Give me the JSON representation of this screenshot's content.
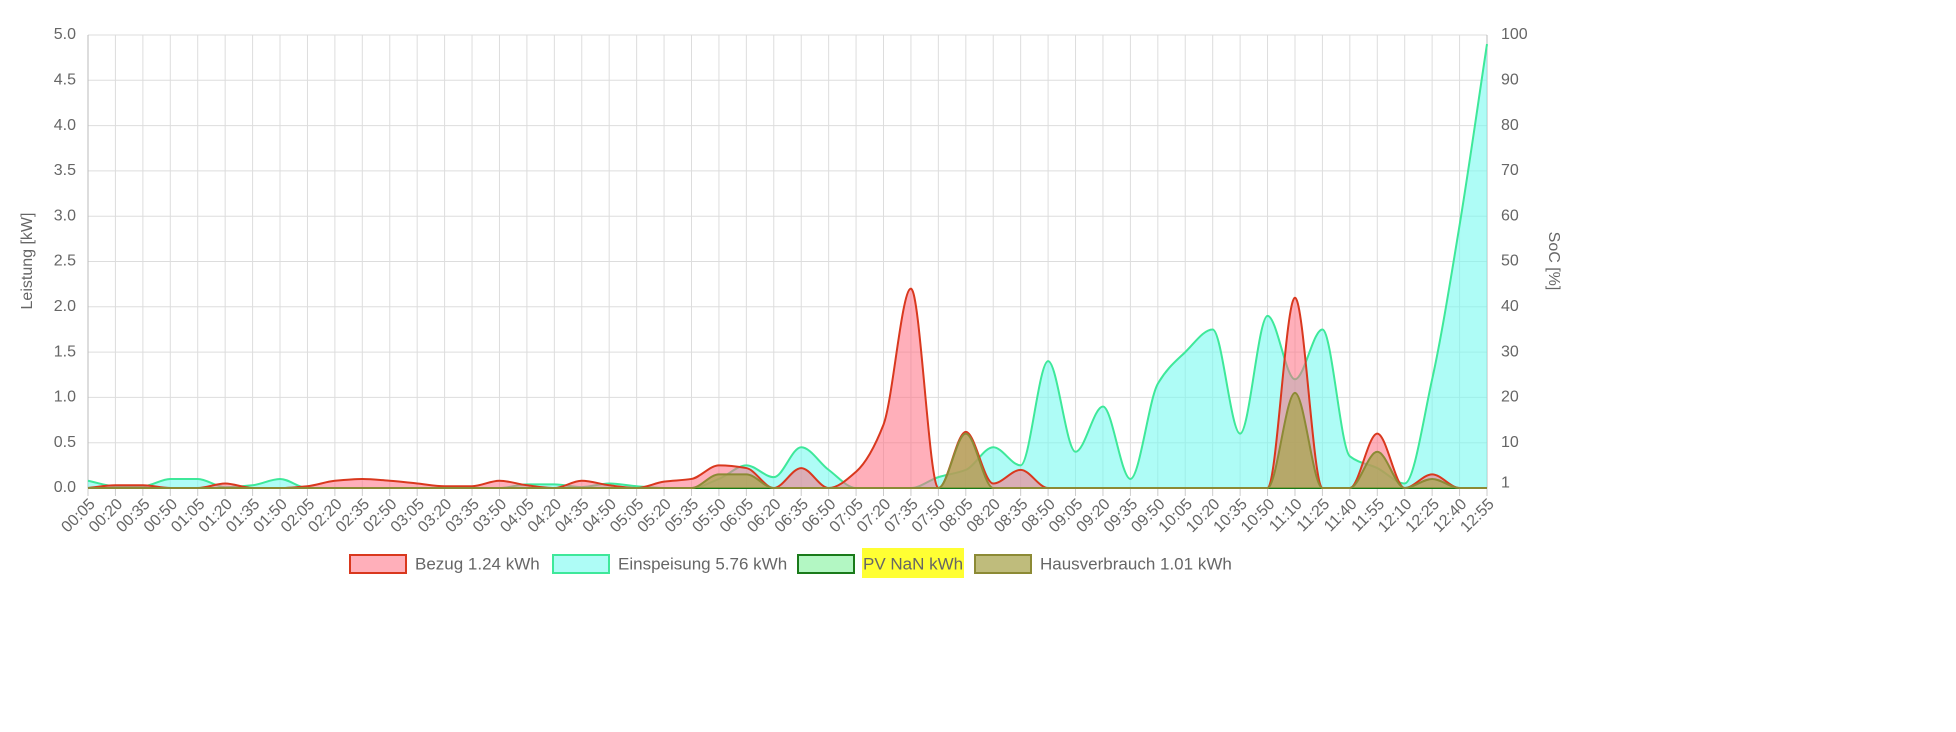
{
  "chart_data": {
    "type": "area",
    "y_label": "Leistung [kW]",
    "y2_label": "SoC [%]",
    "categories": [
      "00:05",
      "00:20",
      "00:35",
      "00:50",
      "01:05",
      "01:20",
      "01:35",
      "01:50",
      "02:05",
      "02:20",
      "02:35",
      "02:50",
      "03:05",
      "03:20",
      "03:35",
      "03:50",
      "04:05",
      "04:20",
      "04:35",
      "04:50",
      "05:05",
      "05:20",
      "05:35",
      "05:50",
      "06:05",
      "06:20",
      "06:35",
      "06:50",
      "07:05",
      "07:20",
      "07:35",
      "07:50",
      "08:05",
      "08:20",
      "08:35",
      "08:50",
      "09:05",
      "09:20",
      "09:35",
      "09:50",
      "10:05",
      "10:20",
      "10:35",
      "10:50",
      "11:10",
      "11:25",
      "11:40",
      "11:55",
      "12:10",
      "12:25",
      "12:40",
      "12:55"
    ],
    "series": [
      {
        "name": "Bezug 1.24 kWh",
        "color": "#d9381e",
        "fill": "rgba(255,110,130,0.55)",
        "values": [
          0,
          0.03,
          0.03,
          0,
          0,
          0.05,
          0,
          0,
          0.02,
          0.08,
          0.1,
          0.08,
          0.05,
          0.02,
          0.02,
          0.08,
          0.03,
          0,
          0.08,
          0.03,
          0,
          0.07,
          0.1,
          0.25,
          0.22,
          0,
          0.22,
          0,
          0.18,
          0.7,
          2.2,
          0,
          0.62,
          0.05,
          0.2,
          0,
          0,
          0,
          0,
          0,
          0,
          0,
          0,
          0,
          2.1,
          0,
          0,
          0.6,
          0,
          0.15,
          0,
          0
        ]
      },
      {
        "name": "Einspeisung 5.76 kWh",
        "color": "#3ee89a",
        "fill": "rgba(120,250,240,0.6)",
        "values": [
          0.08,
          0.02,
          0.02,
          0.1,
          0.1,
          0.01,
          0.03,
          0.1,
          0,
          0,
          0,
          0,
          0,
          0,
          0,
          0,
          0.04,
          0.04,
          0.01,
          0.05,
          0.02,
          0,
          0,
          0.1,
          0.25,
          0.12,
          0.45,
          0.2,
          0,
          0,
          0,
          0.12,
          0.2,
          0.45,
          0.25,
          1.4,
          0.4,
          0.9,
          0.1,
          1.15,
          1.5,
          1.75,
          0.6,
          1.9,
          1.2,
          1.75,
          0.35,
          0.22,
          0.05,
          1.2,
          2.9,
          4.9
        ]
      },
      {
        "name": "PV NaN kWh",
        "color": "#1a7a1a",
        "fill": "rgba(160,245,180,0.8)",
        "values": [
          0,
          0,
          0,
          0,
          0,
          0,
          0,
          0,
          0,
          0,
          0,
          0,
          0,
          0,
          0,
          0,
          0,
          0,
          0,
          0,
          0,
          0,
          0,
          0,
          0,
          0,
          0,
          0,
          0,
          0,
          0,
          0,
          0,
          0,
          0,
          0,
          0,
          0,
          0,
          0,
          0,
          0,
          0,
          0,
          0,
          0,
          0,
          0,
          0,
          0,
          0,
          0
        ]
      },
      {
        "name": "Hausverbrauch 1.01 kWh",
        "color": "#8c8a35",
        "fill": "rgba(170,165,80,0.75)",
        "values": [
          0,
          0,
          0,
          0,
          0,
          0,
          0,
          0,
          0,
          0,
          0,
          0,
          0,
          0,
          0,
          0,
          0,
          0,
          0,
          0,
          0,
          0,
          0,
          0.15,
          0.15,
          0,
          0,
          0,
          0,
          0,
          0,
          0,
          0.6,
          0,
          0,
          0,
          0,
          0,
          0,
          0,
          0,
          0,
          0,
          0,
          1.05,
          0,
          0,
          0.4,
          0,
          0.1,
          0,
          0
        ]
      }
    ],
    "ylim": [
      0,
      5.0
    ],
    "yticks": [
      {
        "value": 0,
        "label": "0.0"
      },
      {
        "value": 0.5,
        "label": "0.5"
      },
      {
        "value": 1,
        "label": "1.0"
      },
      {
        "value": 1.5,
        "label": "1.5"
      },
      {
        "value": 2,
        "label": "2.0"
      },
      {
        "value": 2.5,
        "label": "2.5"
      },
      {
        "value": 3,
        "label": "3.0"
      },
      {
        "value": 3.5,
        "label": "3.5"
      },
      {
        "value": 4,
        "label": "4.0"
      },
      {
        "value": 4.5,
        "label": "4.5"
      },
      {
        "value": 5,
        "label": "5.0"
      }
    ],
    "y2lim": [
      0,
      100
    ],
    "y2ticks": [
      1,
      10,
      20,
      30,
      40,
      50,
      60,
      70,
      80,
      90,
      100
    ],
    "grid": true
  }
}
